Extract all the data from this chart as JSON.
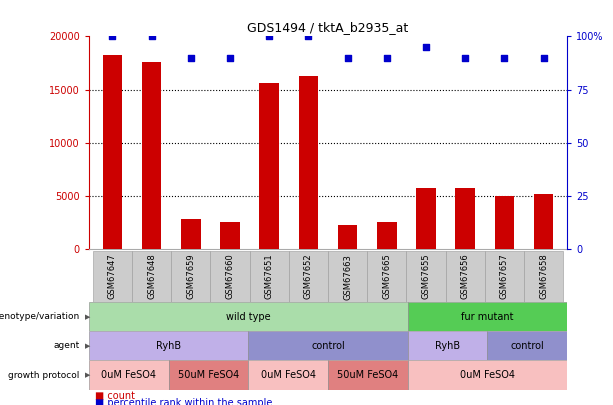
{
  "title": "GDS1494 / tktA_b2935_at",
  "samples": [
    "GSM67647",
    "GSM67648",
    "GSM67659",
    "GSM67660",
    "GSM67651",
    "GSM67652",
    "GSM67663",
    "GSM67665",
    "GSM67655",
    "GSM67656",
    "GSM67657",
    "GSM67658"
  ],
  "counts": [
    18300,
    17600,
    2800,
    2500,
    15600,
    16300,
    2300,
    2500,
    5700,
    5700,
    5000,
    5200
  ],
  "percentiles": [
    100,
    100,
    90,
    90,
    100,
    100,
    90,
    90,
    95,
    90,
    90,
    90
  ],
  "bar_color": "#cc0000",
  "dot_color": "#0000cc",
  "ylim_left": [
    0,
    20000
  ],
  "ylim_right": [
    0,
    100
  ],
  "yticks_left": [
    0,
    5000,
    10000,
    15000,
    20000
  ],
  "yticks_right": [
    0,
    25,
    50,
    75,
    100
  ],
  "ytick_labels_left": [
    "0",
    "5000",
    "10000",
    "15000",
    "20000"
  ],
  "ytick_labels_right": [
    "0",
    "25",
    "50",
    "75",
    "100%"
  ],
  "genotype_groups": [
    {
      "label": "wild type",
      "start": 0,
      "end": 8,
      "color": "#aaddaa"
    },
    {
      "label": "fur mutant",
      "start": 8,
      "end": 12,
      "color": "#55cc55"
    }
  ],
  "agent_groups": [
    {
      "label": "RyhB",
      "start": 0,
      "end": 4,
      "color": "#c0b0e8"
    },
    {
      "label": "control",
      "start": 4,
      "end": 8,
      "color": "#9090cc"
    },
    {
      "label": "RyhB",
      "start": 8,
      "end": 10,
      "color": "#c0b0e8"
    },
    {
      "label": "control",
      "start": 10,
      "end": 12,
      "color": "#9090cc"
    }
  ],
  "growth_groups": [
    {
      "label": "0uM FeSO4",
      "start": 0,
      "end": 2,
      "color": "#f8c0c0"
    },
    {
      "label": "50uM FeSO4",
      "start": 2,
      "end": 4,
      "color": "#e08080"
    },
    {
      "label": "0uM FeSO4",
      "start": 4,
      "end": 6,
      "color": "#f8c0c0"
    },
    {
      "label": "50uM FeSO4",
      "start": 6,
      "end": 8,
      "color": "#e08080"
    },
    {
      "label": "0uM FeSO4",
      "start": 8,
      "end": 12,
      "color": "#f8c0c0"
    }
  ],
  "row_labels": [
    "genotype/variation",
    "agent",
    "growth protocol"
  ],
  "legend_items": [
    {
      "label": "count",
      "color": "#cc0000"
    },
    {
      "label": "percentile rank within the sample",
      "color": "#0000cc"
    }
  ],
  "bg_color": "#ffffff",
  "tick_label_bg": "#cccccc"
}
